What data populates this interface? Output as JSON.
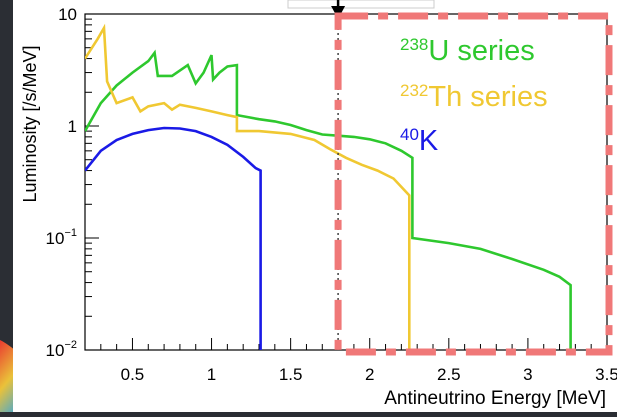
{
  "chart_data": {
    "type": "line",
    "title": "",
    "xlabel": "Antineutrino Energy [MeV]",
    "ylabel": "Luminosity [/s/MeV]",
    "xlim": [
      0.2,
      3.5
    ],
    "ylim": [
      0.01,
      10
    ],
    "yscale": "log",
    "x_ticks": [
      0.5,
      1,
      1.5,
      2,
      2.5,
      3,
      3.5
    ],
    "x_tick_labels": [
      "0.5",
      "1",
      "1.5",
      "2",
      "2.5",
      "3",
      "3.5"
    ],
    "y_ticks": [
      0.01,
      0.1,
      1,
      10
    ],
    "y_tick_labels": [
      {
        "base": "10",
        "sup": "−2"
      },
      {
        "base": "10",
        "sup": "−1"
      },
      {
        "base": "1",
        "sup": ""
      },
      {
        "base": "10",
        "sup": ""
      }
    ],
    "series": [
      {
        "name": "238U series",
        "label_sup": "238",
        "label_main": "U series",
        "color": "#2ec82e",
        "points": [
          [
            0.2,
            0.9
          ],
          [
            0.3,
            1.6
          ],
          [
            0.4,
            2.3
          ],
          [
            0.5,
            3.0
          ],
          [
            0.6,
            3.8
          ],
          [
            0.64,
            4.5
          ],
          [
            0.66,
            2.8
          ],
          [
            0.75,
            2.8
          ],
          [
            0.85,
            3.5
          ],
          [
            0.9,
            2.4
          ],
          [
            0.95,
            3.0
          ],
          [
            1.0,
            4.3
          ],
          [
            1.01,
            2.6
          ],
          [
            1.05,
            3.0
          ],
          [
            1.1,
            3.4
          ],
          [
            1.16,
            3.5
          ],
          [
            1.16,
            1.25
          ],
          [
            1.3,
            1.15
          ],
          [
            1.4,
            1.1
          ],
          [
            1.5,
            1.02
          ],
          [
            1.6,
            0.92
          ],
          [
            1.7,
            0.84
          ],
          [
            1.8,
            0.82
          ],
          [
            1.9,
            0.8
          ],
          [
            2.0,
            0.76
          ],
          [
            2.1,
            0.7
          ],
          [
            2.2,
            0.6
          ],
          [
            2.27,
            0.52
          ],
          [
            2.27,
            0.1
          ],
          [
            2.5,
            0.09
          ],
          [
            2.7,
            0.08
          ],
          [
            2.9,
            0.065
          ],
          [
            3.1,
            0.052
          ],
          [
            3.2,
            0.045
          ],
          [
            3.27,
            0.038
          ],
          [
            3.27,
            0.0085
          ]
        ]
      },
      {
        "name": "232Th series",
        "label_sup": "232",
        "label_main": "Th series",
        "color": "#f0c832",
        "points": [
          [
            0.2,
            4.0
          ],
          [
            0.28,
            6.0
          ],
          [
            0.32,
            7.5
          ],
          [
            0.34,
            2.5
          ],
          [
            0.4,
            1.6
          ],
          [
            0.5,
            1.8
          ],
          [
            0.55,
            1.35
          ],
          [
            0.6,
            1.5
          ],
          [
            0.7,
            1.6
          ],
          [
            0.75,
            1.4
          ],
          [
            0.8,
            1.55
          ],
          [
            0.9,
            1.45
          ],
          [
            1.0,
            1.35
          ],
          [
            1.1,
            1.25
          ],
          [
            1.16,
            1.2
          ],
          [
            1.16,
            0.9
          ],
          [
            1.3,
            0.9
          ],
          [
            1.5,
            0.85
          ],
          [
            1.65,
            0.75
          ],
          [
            1.75,
            0.62
          ],
          [
            1.85,
            0.52
          ],
          [
            1.95,
            0.45
          ],
          [
            2.05,
            0.4
          ],
          [
            2.15,
            0.34
          ],
          [
            2.25,
            0.24
          ],
          [
            2.25,
            0.0085
          ]
        ]
      },
      {
        "name": "40K",
        "label_sup": "40",
        "label_main": "K",
        "color": "#1a1ae6",
        "points": [
          [
            0.2,
            0.4
          ],
          [
            0.3,
            0.6
          ],
          [
            0.4,
            0.75
          ],
          [
            0.5,
            0.85
          ],
          [
            0.6,
            0.92
          ],
          [
            0.7,
            0.96
          ],
          [
            0.8,
            0.95
          ],
          [
            0.9,
            0.9
          ],
          [
            1.0,
            0.8
          ],
          [
            1.1,
            0.68
          ],
          [
            1.2,
            0.53
          ],
          [
            1.28,
            0.42
          ],
          [
            1.31,
            0.4
          ],
          [
            1.31,
            0.0085
          ]
        ]
      }
    ],
    "marker_x": 1.8,
    "highlight_box_color": "#f07878"
  }
}
